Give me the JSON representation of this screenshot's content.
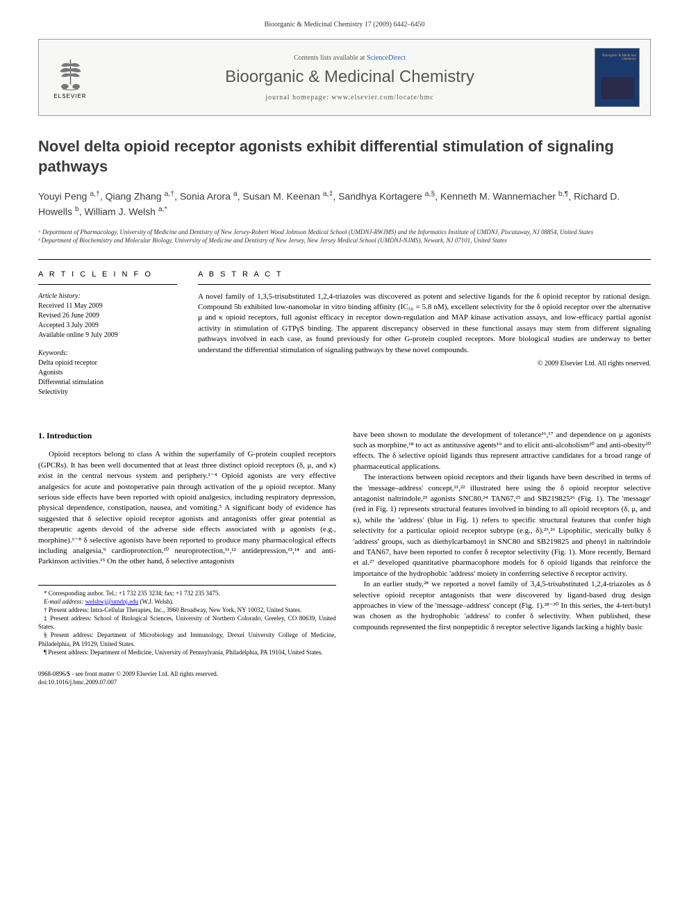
{
  "header": {
    "citation": "Bioorganic & Medicinal Chemistry 17 (2009) 6442–6450"
  },
  "banner": {
    "publisher": "ELSEVIER",
    "contents_prefix": "Contents lists available at ",
    "contents_link": "ScienceDirect",
    "journal_name": "Bioorganic & Medicinal Chemistry",
    "homepage_label": "journal homepage: www.elsevier.com/locate/bmc",
    "cover_title": "Bioorganic & Medicinal Chemistry"
  },
  "title": "Novel delta opioid receptor agonists exhibit differential stimulation of signaling pathways",
  "authors_html": "Youyi Peng <sup>a,†</sup>, Qiang Zhang <sup>a,†</sup>, Sonia Arora <sup>a</sup>, Susan M. Keenan <sup>a,‡</sup>, Sandhya Kortagere <sup>a,§</sup>, Kenneth M. Wannemacher <sup>b,¶</sup>, Richard D. Howells <sup>b</sup>, William J. Welsh <sup>a,*</sup>",
  "affiliations": [
    "ᵃ Department of Pharmacology, University of Medicine and Dentistry of New Jersey-Robert Wood Johnson Medical School (UMDNJ-RWJMS) and the Informatics Institute of UMDNJ, Piscataway, NJ 08854, United States",
    "ᵇ Department of Biochemistry and Molecular Biology, University of Medicine and Dentistry of New Jersey, New Jersey Medical School (UMDNJ-NJMS), Newark, NJ 07101, United States"
  ],
  "info": {
    "heading": "A R T I C L E   I N F O",
    "history_title": "Article history:",
    "history": [
      "Received 11 May 2009",
      "Revised 26 June 2009",
      "Accepted 3 July 2009",
      "Available online 9 July 2009"
    ],
    "keywords_title": "Keywords:",
    "keywords": [
      "Delta opioid receptor",
      "Agonists",
      "Differential stimulation",
      "Selectivity"
    ]
  },
  "abstract": {
    "heading": "A B S T R A C T",
    "text": "A novel family of 1,3,5-trisubstituted 1,2,4-triazoles was discovered as potent and selective ligands for the δ opioid receptor by rational design. Compound 5b exhibited low-nanomolar in vitro binding affinity (IC₅₀ = 5.8 nM), excellent selectivity for the δ opioid receptor over the alternative μ and κ opioid receptors, full agonist efficacy in receptor down-regulation and MAP kinase activation assays, and low-efficacy partial agonist activity in stimulation of GTPγS binding. The apparent discrepancy observed in these functional assays may stem from different signaling pathways involved in each case, as found previously for other G-protein coupled receptors. More biological studies are underway to better understand the differential stimulation of signaling pathways by these novel compounds.",
    "copyright": "© 2009 Elsevier Ltd. All rights reserved."
  },
  "body": {
    "section_heading": "1. Introduction",
    "left_paras": [
      "Opioid receptors belong to class A within the superfamily of G-protein coupled receptors (GPCRs). It has been well documented that at least three distinct opioid receptors (δ, μ, and κ) exist in the central nervous system and periphery.¹⁻⁴ Opioid agonists are very effective analgesics for acute and postoperative pain through activation of the μ opioid receptor. Many serious side effects have been reported with opioid analgesics, including respiratory depression, physical dependence, constipation, nausea, and vomiting.⁵ A significant body of evidence has suggested that δ selective opioid receptor agonists and antagonists offer great potential as therapeutic agents devoid of the adverse side effects associated with μ agonists (e.g., morphine).⁶⁻⁸ δ selective agonists have been reported to produce many pharmacological effects including analgesia,⁹ cardioprotection,¹⁰ neuroprotection,¹¹,¹² antidepression,¹³,¹⁴ and anti-Parkinson activities.¹⁵ On the other hand, δ selective antagonists"
    ],
    "right_paras": [
      "have been shown to modulate the development of tolerance¹⁶,¹⁷ and dependence on μ agonists such as morphine,¹⁸ to act as antitussive agents¹⁹ and to elicit anti-alcoholism²⁰ and anti-obesity²⁰ effects. The δ selective opioid ligands thus represent attractive candidates for a broad range of pharmaceutical applications.",
      "The interactions between opioid receptors and their ligands have been described in terms of the 'message–address' concept,²¹,²² illustrated here using the δ opioid receptor selective antagonist naltrindole,²³ agonists SNC80,²⁴ TAN67,²⁵ and SB219825²⁶ (Fig. 1). The 'message' (red in Fig. 1) represents structural features involved in binding to all opioid receptors (δ, μ, and κ), while the 'address' (blue in Fig. 1) refers to specific structural features that confer high selectivity for a particular opioid receptor subtype (e.g., δ).²³,²⁶ Lipophilic, sterically bulky δ 'address' groups, such as diethylcarbamoyl in SNC80 and SB219825 and phenyl in naltrindole and TAN67, have been reported to confer δ receptor selectivity (Fig. 1). More recently, Bernard et al.²⁷ developed quantitative pharmacophore models for δ opioid ligands that reinforce the importance of the hydrophobic 'address' moiety in conferring selective δ receptor activity.",
      "In an earlier study,²⁸ we reported a novel family of 3,4,5-trisubstituted 1,2,4-triazoles as δ selective opioid receptor antagonists that were discovered by ligand-based drug design approaches in view of the 'message–address' concept (Fig. 1).²⁸⁻³⁰ In this series, the 4-tert-butyl was chosen as the hydrophobic 'address' to confer δ selectivity. When published, these compounds represented the first nonpeptidic δ receptor selective ligands lacking a highly basic"
    ]
  },
  "footnotes": {
    "corr": "* Corresponding author. Tel.: +1 732 235 3234; fax: +1 732 235 3475.",
    "email_label": "E-mail address:",
    "email": "welshwj@umdnj.edu",
    "email_suffix": "(W.J. Welsh).",
    "present": [
      "† Present address: Intra-Cellular Therapies, Inc., 3960 Broadway, New York, NY 10032, United States.",
      "‡ Present address: School of Biological Sciences, University of Northern Colorado, Greeley, CO 80639, United States.",
      "§ Present address: Department of Microbiology and Immunology, Drexel University College of Medicine, Philadelphia, PA 19129, United States.",
      "¶ Present address: Department of Medicine, University of Pennsylvania, Philadelphia, PA 19104, United States."
    ]
  },
  "footer": {
    "line1": "0968-0896/$ - see front matter © 2009 Elsevier Ltd. All rights reserved.",
    "line2": "doi:10.1016/j.bmc.2009.07.007"
  },
  "colors": {
    "link": "#2a5db0",
    "text": "#000000",
    "heading": "#3a3a3a",
    "cover_bg": "#1a3a6e",
    "banner_bg": "#f7f7f5"
  }
}
